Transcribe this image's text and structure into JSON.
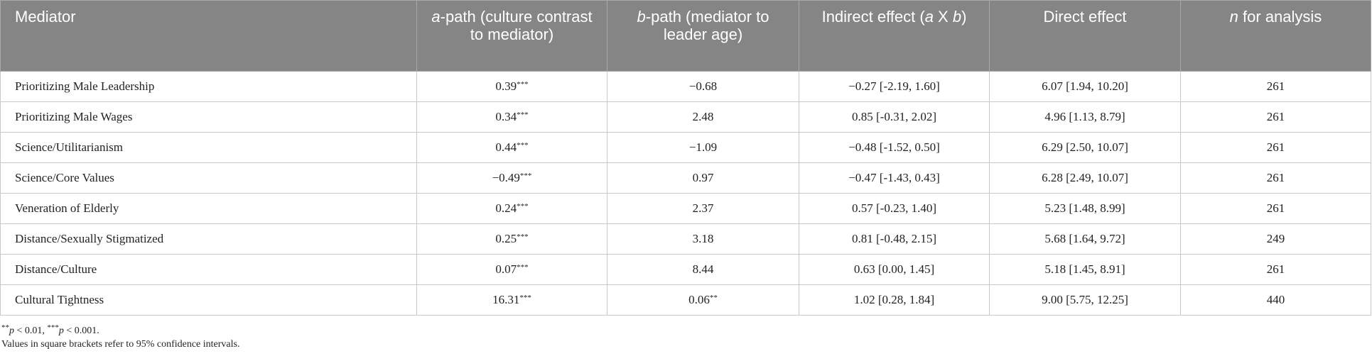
{
  "table": {
    "header": [
      [
        {
          "text": "Mediator",
          "italic": false
        }
      ],
      [
        {
          "text": "a",
          "italic": true
        },
        {
          "text": "-path (culture contrast to mediator)",
          "italic": false
        }
      ],
      [
        {
          "text": "b",
          "italic": true
        },
        {
          "text": "-path (mediator to leader age)",
          "italic": false
        }
      ],
      [
        {
          "text": "Indirect effect (",
          "italic": false
        },
        {
          "text": "a",
          "italic": true
        },
        {
          "text": " X ",
          "italic": false
        },
        {
          "text": "b",
          "italic": true
        },
        {
          "text": ")",
          "italic": false
        }
      ],
      [
        {
          "text": "Direct effect",
          "italic": false
        }
      ],
      [
        {
          "text": "n",
          "italic": true
        },
        {
          "text": " for analysis",
          "italic": false
        }
      ]
    ],
    "rows": [
      [
        {
          "value": "Prioritizing Male Leadership"
        },
        {
          "value": "0.39",
          "sup": "***"
        },
        {
          "value": "−0.68"
        },
        {
          "value": "−0.27 [-2.19, 1.60]"
        },
        {
          "value": "6.07 [1.94, 10.20]"
        },
        {
          "value": "261"
        }
      ],
      [
        {
          "value": "Prioritizing Male Wages"
        },
        {
          "value": "0.34",
          "sup": "***"
        },
        {
          "value": "2.48"
        },
        {
          "value": "0.85 [-0.31, 2.02]"
        },
        {
          "value": "4.96 [1.13, 8.79]"
        },
        {
          "value": "261"
        }
      ],
      [
        {
          "value": "Science/Utilitarianism"
        },
        {
          "value": "0.44",
          "sup": "***"
        },
        {
          "value": "−1.09"
        },
        {
          "value": "−0.48 [-1.52, 0.50]"
        },
        {
          "value": "6.29 [2.50, 10.07]"
        },
        {
          "value": "261"
        }
      ],
      [
        {
          "value": "Science/Core Values"
        },
        {
          "value": "−0.49",
          "sup": "***"
        },
        {
          "value": "0.97"
        },
        {
          "value": "−0.47 [-1.43, 0.43]"
        },
        {
          "value": "6.28 [2.49, 10.07]"
        },
        {
          "value": "261"
        }
      ],
      [
        {
          "value": "Veneration of Elderly"
        },
        {
          "value": "0.24",
          "sup": "***"
        },
        {
          "value": "2.37"
        },
        {
          "value": "0.57 [-0.23, 1.40]"
        },
        {
          "value": "5.23 [1.48, 8.99]"
        },
        {
          "value": "261"
        }
      ],
      [
        {
          "value": "Distance/Sexually Stigmatized"
        },
        {
          "value": "0.25",
          "sup": "***"
        },
        {
          "value": "3.18"
        },
        {
          "value": "0.81 [-0.48, 2.15]"
        },
        {
          "value": "5.68 [1.64, 9.72]"
        },
        {
          "value": "249"
        }
      ],
      [
        {
          "value": "Distance/Culture"
        },
        {
          "value": "0.07",
          "sup": "***"
        },
        {
          "value": "8.44"
        },
        {
          "value": "0.63 [0.00, 1.45]"
        },
        {
          "value": "5.18 [1.45, 8.91]"
        },
        {
          "value": "261"
        }
      ],
      [
        {
          "value": "Cultural Tightness"
        },
        {
          "value": "16.31",
          "sup": "***"
        },
        {
          "value": "0.06",
          "sup": "**"
        },
        {
          "value": "1.02 [0.28, 1.84]"
        },
        {
          "value": "9.00 [5.75, 12.25]"
        },
        {
          "value": "440"
        }
      ]
    ]
  },
  "footnotes": [
    [
      {
        "text": "**",
        "sup": true
      },
      {
        "text": "p",
        "italic": true
      },
      {
        "text": " < 0.01, "
      },
      {
        "text": "***",
        "sup": true
      },
      {
        "text": "p",
        "italic": true
      },
      {
        "text": " < 0.001."
      }
    ],
    [
      {
        "text": "Values in square brackets refer to 95% confidence intervals."
      }
    ]
  ]
}
